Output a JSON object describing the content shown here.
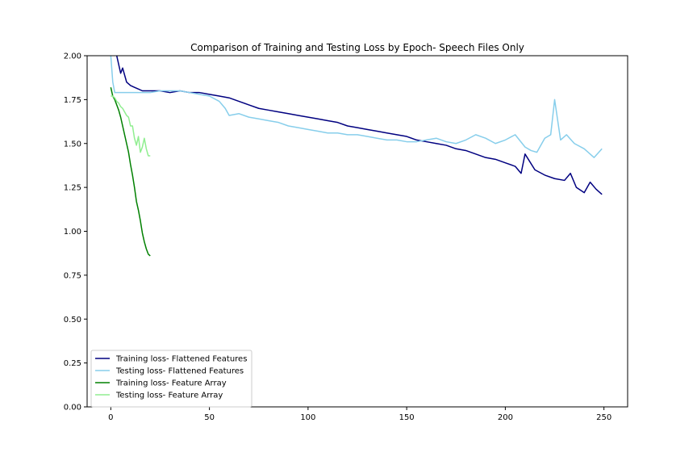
{
  "chart_data": {
    "type": "line",
    "title": "Comparison of Training and Testing Loss by Epoch- Speech Files Only",
    "xlabel": "",
    "ylabel": "",
    "xlim": [
      -12,
      262
    ],
    "ylim": [
      0,
      2.0
    ],
    "x_ticks": [
      0,
      50,
      100,
      150,
      200,
      250
    ],
    "y_ticks": [
      0.0,
      0.25,
      0.5,
      0.75,
      1.0,
      1.25,
      1.5,
      1.75,
      2.0
    ],
    "x_tick_labels": [
      "0",
      "50",
      "100",
      "150",
      "200",
      "250"
    ],
    "y_tick_labels": [
      "0.00",
      "0.25",
      "0.50",
      "0.75",
      "1.00",
      "1.25",
      "1.50",
      "1.75",
      "2.00"
    ],
    "grid": false,
    "legend_position": "lower-left",
    "series": [
      {
        "name": "Training loss- Flattened Features",
        "color": "#000080",
        "x": [
          0,
          2,
          3,
          5,
          6,
          8,
          10,
          12,
          14,
          16,
          18,
          20,
          25,
          30,
          35,
          40,
          45,
          50,
          55,
          60,
          65,
          70,
          75,
          80,
          85,
          90,
          95,
          100,
          105,
          110,
          115,
          120,
          125,
          130,
          135,
          140,
          145,
          150,
          155,
          160,
          165,
          170,
          175,
          180,
          185,
          190,
          195,
          200,
          205,
          208,
          210,
          215,
          220,
          225,
          230,
          233,
          236,
          240,
          243,
          246,
          249
        ],
        "y": [
          2.18,
          2.1,
          2.0,
          1.9,
          1.93,
          1.85,
          1.83,
          1.82,
          1.81,
          1.8,
          1.8,
          1.8,
          1.8,
          1.79,
          1.8,
          1.79,
          1.79,
          1.78,
          1.77,
          1.76,
          1.74,
          1.72,
          1.7,
          1.69,
          1.68,
          1.67,
          1.66,
          1.65,
          1.64,
          1.63,
          1.62,
          1.6,
          1.59,
          1.58,
          1.57,
          1.56,
          1.55,
          1.54,
          1.52,
          1.51,
          1.5,
          1.49,
          1.47,
          1.46,
          1.44,
          1.42,
          1.41,
          1.39,
          1.37,
          1.33,
          1.44,
          1.35,
          1.32,
          1.3,
          1.29,
          1.33,
          1.25,
          1.22,
          1.28,
          1.24,
          1.21
        ]
      },
      {
        "name": "Testing loss- Flattened Features",
        "color": "#87ceeb",
        "x": [
          0,
          1,
          2,
          5,
          10,
          15,
          20,
          25,
          30,
          35,
          40,
          45,
          50,
          55,
          58,
          60,
          65,
          70,
          75,
          80,
          85,
          90,
          95,
          100,
          105,
          110,
          115,
          120,
          125,
          130,
          135,
          140,
          145,
          150,
          155,
          160,
          165,
          170,
          175,
          180,
          185,
          190,
          195,
          200,
          205,
          210,
          213,
          216,
          220,
          223,
          225,
          228,
          231,
          235,
          240,
          245,
          249
        ],
        "y": [
          2.0,
          1.85,
          1.79,
          1.79,
          1.79,
          1.79,
          1.79,
          1.8,
          1.8,
          1.8,
          1.79,
          1.78,
          1.77,
          1.74,
          1.7,
          1.66,
          1.67,
          1.65,
          1.64,
          1.63,
          1.62,
          1.6,
          1.59,
          1.58,
          1.57,
          1.56,
          1.56,
          1.55,
          1.55,
          1.54,
          1.53,
          1.52,
          1.52,
          1.51,
          1.51,
          1.52,
          1.53,
          1.51,
          1.5,
          1.52,
          1.55,
          1.53,
          1.5,
          1.52,
          1.55,
          1.48,
          1.46,
          1.45,
          1.53,
          1.55,
          1.75,
          1.52,
          1.55,
          1.5,
          1.47,
          1.42,
          1.47
        ]
      },
      {
        "name": "Training loss- Feature Array",
        "color": "#008000",
        "x": [
          0,
          1,
          2,
          3,
          4,
          5,
          6,
          7,
          8,
          9,
          10,
          11,
          12,
          13,
          14,
          15,
          16,
          17,
          18,
          19,
          20
        ],
        "y": [
          1.82,
          1.77,
          1.75,
          1.72,
          1.69,
          1.65,
          1.6,
          1.55,
          1.5,
          1.45,
          1.38,
          1.32,
          1.25,
          1.17,
          1.12,
          1.06,
          0.99,
          0.94,
          0.9,
          0.87,
          0.86
        ]
      },
      {
        "name": "Testing loss- Feature Array",
        "color": "#90ee90",
        "x": [
          0,
          1,
          2,
          3,
          4,
          5,
          6,
          7,
          8,
          9,
          10,
          11,
          12,
          13,
          14,
          15,
          16,
          17,
          18,
          19,
          20
        ],
        "y": [
          1.77,
          1.77,
          1.76,
          1.74,
          1.73,
          1.71,
          1.7,
          1.68,
          1.66,
          1.65,
          1.6,
          1.6,
          1.53,
          1.49,
          1.54,
          1.45,
          1.48,
          1.53,
          1.47,
          1.43,
          1.43
        ]
      }
    ]
  }
}
